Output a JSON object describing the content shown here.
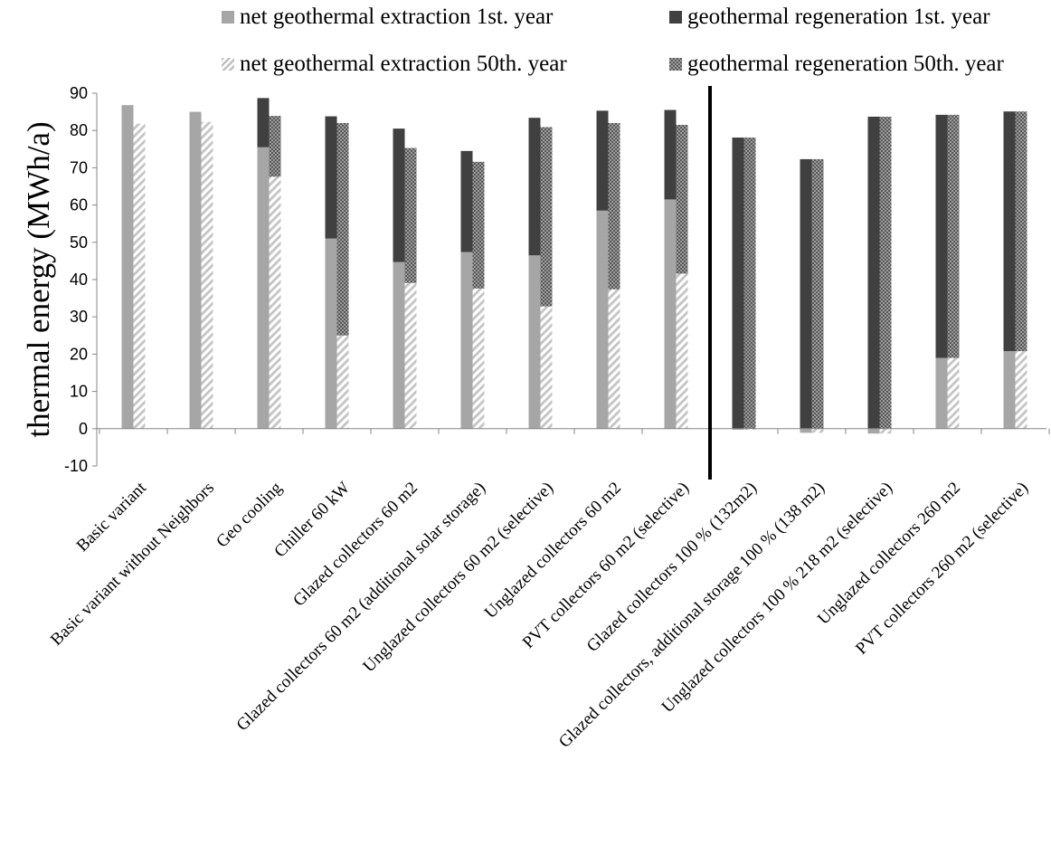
{
  "chart_data": {
    "type": "bar",
    "subtype": "grouped-stacked",
    "title": "",
    "xlabel": "",
    "ylabel": "thermal energy (MWh/a)",
    "ylim": [
      -10,
      90
    ],
    "yticks": [
      -10,
      0,
      10,
      20,
      30,
      40,
      50,
      60,
      70,
      80,
      90
    ],
    "grid": false,
    "legend_position": "top",
    "divider_after_category": 9,
    "categories": [
      "Basic variant",
      "Basic variant without Neighbors",
      "Geo cooling",
      "Chiller 60 kW",
      "Glazed collectors 60 m2",
      "Glazed collectors 60 m2 (additional solar storage)",
      "Unglazed collectors 60 m2 (selective)",
      "Unglazed collectors 60 m2",
      "PVT collectors 60 m2 (selective)",
      "Glazed collectors 100 % (132m2)",
      "Glazed collectors, additional storage 100 % (138 m2)",
      "Unglazed collectors 100 % 218 m2 (selective)",
      "Unglazed collectors 260 m2",
      "PVT collectors 260 m2 (selective)"
    ],
    "series": [
      {
        "name": "net geothermal extraction 1st. year",
        "group": "1st",
        "color": "#a6a6a6",
        "pattern": "solid",
        "values": [
          86.8,
          85.0,
          75.5,
          51.0,
          44.7,
          47.4,
          46.5,
          58.5,
          61.5,
          -0.3,
          -1.1,
          -1.3,
          19.0,
          20.8
        ]
      },
      {
        "name": "geothermal regeneration 1st. year",
        "group": "1st",
        "color": "#404040",
        "pattern": "solid",
        "values": [
          0,
          0,
          13.2,
          32.8,
          35.8,
          27.1,
          36.9,
          26.8,
          24.0,
          78.1,
          72.3,
          83.7,
          65.2,
          64.3
        ]
      },
      {
        "name": "net geothermal extraction 50th. year",
        "group": "50th",
        "color": "#cfcfcf",
        "pattern": "diagonal-hatch",
        "values": [
          81.8,
          82.3,
          67.6,
          25.0,
          39.1,
          37.6,
          32.8,
          37.4,
          41.6,
          -0.3,
          -1.1,
          -1.3,
          19.0,
          20.8
        ]
      },
      {
        "name": "geothermal regeneration 50th. year",
        "group": "50th",
        "color": "#7f7f7f",
        "pattern": "checker",
        "values": [
          0,
          0,
          16.3,
          57.0,
          36.2,
          34.0,
          48.1,
          44.6,
          39.9,
          78.1,
          72.3,
          83.7,
          65.2,
          64.3
        ]
      }
    ]
  }
}
